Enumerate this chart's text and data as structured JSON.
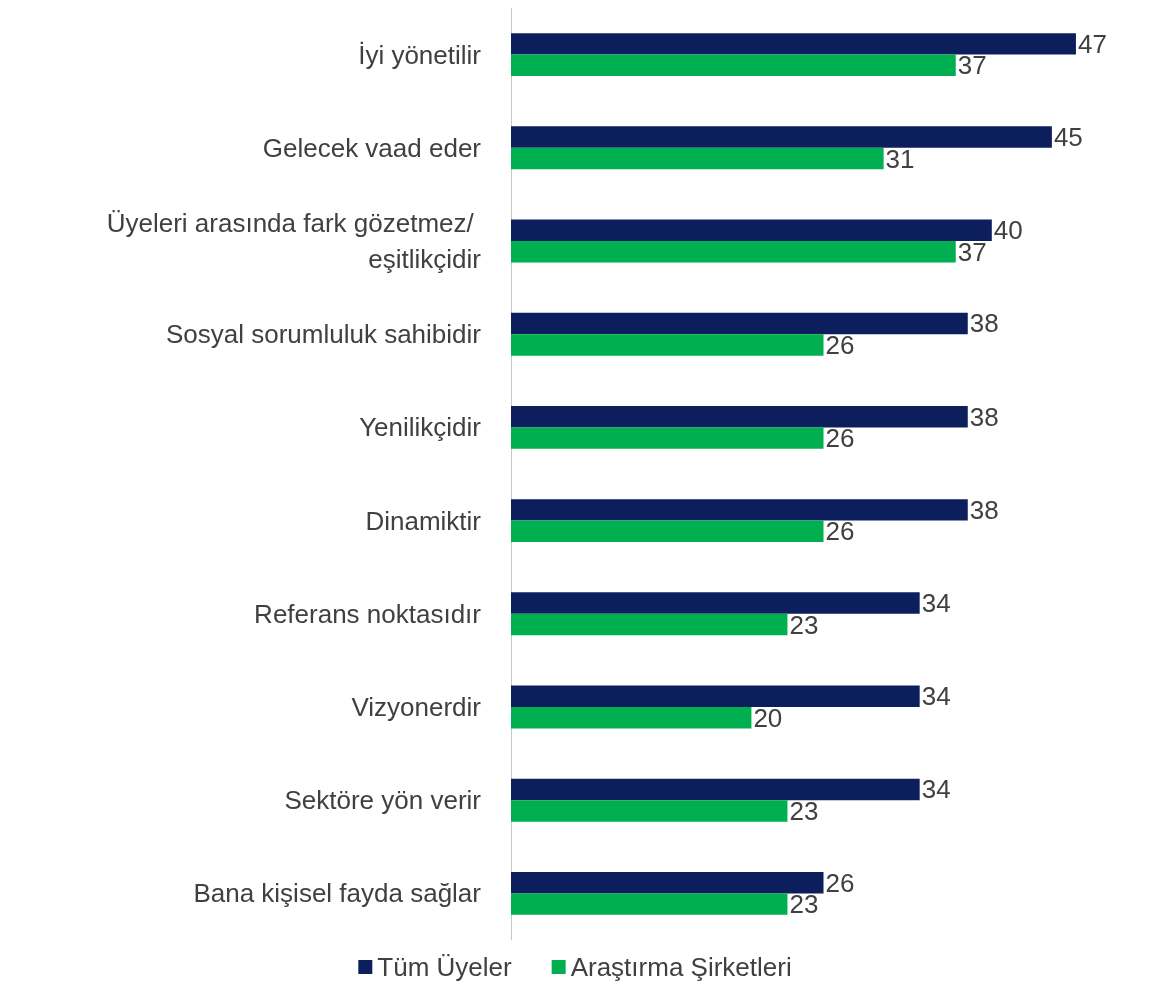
{
  "chart_data": {
    "type": "bar",
    "orientation": "horizontal",
    "data_labels": true,
    "legend": "bottom",
    "grid": false,
    "categories": [
      "İyi yönetilir",
      "Gelecek vaad eder",
      "Üyeleri arasında fark gözetmez/ eşitlikçidir",
      "Sosyal sorumluluk sahibidir",
      "Yenilikçidir",
      "Dinamiktir",
      "Referans noktasıdır",
      "Vizyonerdir",
      "Sektöre yön verir",
      "Bana kişisel fayda sağlar"
    ],
    "series": [
      {
        "name": "Tüm Üyeler",
        "color": "#0c1f5c",
        "values": [
          47,
          45,
          40,
          38,
          38,
          38,
          34,
          34,
          34,
          26
        ]
      },
      {
        "name": "Araştırma Şirketleri",
        "color": "#00b050",
        "values": [
          37,
          31,
          37,
          26,
          26,
          26,
          23,
          20,
          23,
          23
        ]
      }
    ]
  }
}
